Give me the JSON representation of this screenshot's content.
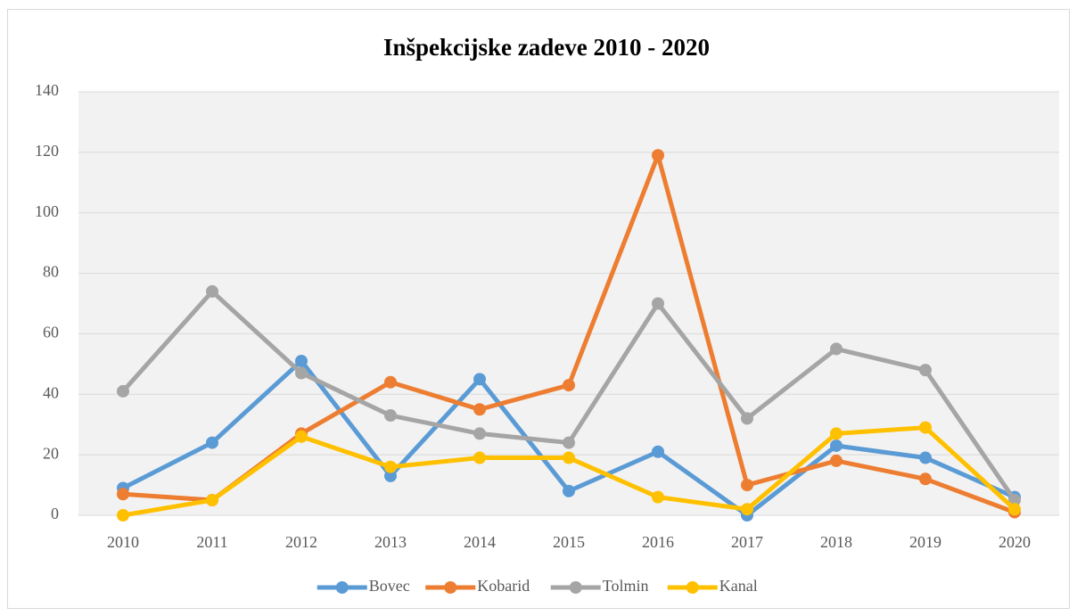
{
  "chart_data": {
    "type": "line",
    "title": "Inšpekcijske zadeve 2010 - 2020",
    "categories": [
      "2010",
      "2011",
      "2012",
      "2013",
      "2014",
      "2015",
      "2016",
      "2017",
      "2018",
      "2019",
      "2020"
    ],
    "series": [
      {
        "name": "Bovec",
        "color": "#5b9bd5",
        "values": [
          9,
          24,
          51,
          13,
          45,
          8,
          21,
          0,
          23,
          19,
          6
        ]
      },
      {
        "name": "Kobarid",
        "color": "#ed7d31",
        "values": [
          7,
          5,
          27,
          44,
          35,
          43,
          119,
          10,
          18,
          12,
          1
        ]
      },
      {
        "name": "Tolmin",
        "color": "#a5a5a5",
        "values": [
          41,
          74,
          47,
          33,
          27,
          24,
          70,
          32,
          55,
          48,
          5
        ]
      },
      {
        "name": "Kanal",
        "color": "#ffc000",
        "values": [
          0,
          5,
          26,
          16,
          19,
          19,
          6,
          2,
          27,
          29,
          2
        ]
      }
    ],
    "ylim": [
      0,
      140
    ],
    "yticks": [
      0,
      20,
      40,
      60,
      80,
      100,
      120,
      140
    ],
    "grid": true,
    "legend": "bottom"
  }
}
